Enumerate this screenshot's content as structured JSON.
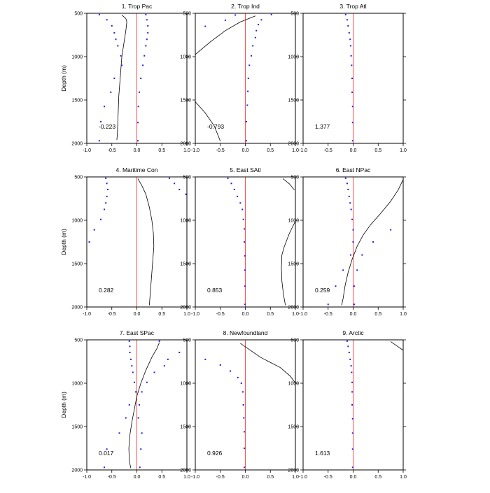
{
  "figure": {
    "y_axis_label": "Depth (m)"
  },
  "chart_data": [
    {
      "type": "line",
      "title": "1. Trop Pac",
      "value_label": "-0.223",
      "xlim": [
        -1,
        1
      ],
      "ylim": [
        500,
        2000
      ],
      "ylabel": "Depth (m)",
      "xticks": [
        "-1.0",
        "-0.5",
        "0.0",
        "0.5",
        "1.0"
      ],
      "yticks": [
        "500",
        "1000",
        "1500",
        "2000"
      ],
      "reference_x": 0,
      "line": [
        [
          -0.3,
          520
        ],
        [
          -0.22,
          560
        ],
        [
          -0.2,
          600
        ],
        [
          -0.22,
          700
        ],
        [
          -0.26,
          850
        ],
        [
          -0.3,
          1000
        ],
        [
          -0.32,
          1150
        ],
        [
          -0.34,
          1300
        ],
        [
          -0.36,
          1450
        ],
        [
          -0.37,
          1600
        ],
        [
          -0.38,
          1750
        ],
        [
          -0.39,
          1900
        ],
        [
          -0.4,
          1960
        ]
      ],
      "points": [
        [
          -0.75,
          515
        ],
        [
          -0.6,
          575
        ],
        [
          -0.5,
          645
        ],
        [
          -0.45,
          725
        ],
        [
          -0.42,
          800
        ],
        [
          -0.38,
          875
        ],
        [
          -0.32,
          990
        ],
        [
          -0.3,
          1100
        ],
        [
          -0.45,
          1250
        ],
        [
          -0.52,
          1410
        ],
        [
          -0.65,
          1575
        ],
        [
          -0.72,
          1750
        ],
        [
          -0.75,
          1970
        ],
        [
          0.18,
          515
        ],
        [
          0.2,
          575
        ],
        [
          0.22,
          645
        ],
        [
          0.22,
          725
        ],
        [
          0.2,
          800
        ],
        [
          0.18,
          875
        ],
        [
          0.15,
          990
        ],
        [
          0.12,
          1100
        ],
        [
          0.08,
          1250
        ],
        [
          0.05,
          1410
        ],
        [
          0.03,
          1575
        ],
        [
          0.02,
          1760
        ],
        [
          0.02,
          1970
        ]
      ]
    },
    {
      "type": "line",
      "title": "2. Trop Ind",
      "value_label": "-0.793",
      "xlim": [
        -1,
        1
      ],
      "ylim": [
        500,
        2000
      ],
      "ylabel": "",
      "xticks": [
        "-1.0",
        "-0.5",
        "0.0",
        "0.5",
        "1.0"
      ],
      "yticks": [
        "500",
        "1000",
        "1500",
        "2000"
      ],
      "reference_x": 0,
      "line": [
        [
          0.2,
          530
        ],
        [
          -0.1,
          600
        ],
        [
          -0.4,
          700
        ],
        [
          -0.7,
          830
        ],
        [
          -1.0,
          975
        ]
      ],
      "line2": [
        [
          -1.0,
          1520
        ],
        [
          -0.8,
          1650
        ],
        [
          -0.62,
          1800
        ],
        [
          -0.5,
          1975
        ]
      ],
      "points": [
        [
          -0.2,
          520
        ],
        [
          -0.4,
          580
        ],
        [
          -0.8,
          650
        ],
        [
          0.52,
          515
        ],
        [
          0.32,
          575
        ],
        [
          0.26,
          630
        ],
        [
          0.22,
          700
        ],
        [
          0.2,
          780
        ],
        [
          0.15,
          875
        ],
        [
          0.12,
          990
        ],
        [
          0.08,
          1100
        ],
        [
          0.06,
          1250
        ],
        [
          0.05,
          1400
        ],
        [
          0.04,
          1560
        ],
        [
          0.02,
          1750
        ],
        [
          0.02,
          1970
        ]
      ]
    },
    {
      "type": "line",
      "title": "3. Trop Atl",
      "value_label": "1.377",
      "xlim": [
        -1,
        1
      ],
      "ylim": [
        500,
        2000
      ],
      "ylabel": "",
      "xticks": [
        "-1.0",
        "-0.5",
        "0.0",
        "0.5",
        "1.0"
      ],
      "yticks": [
        "500",
        "1000",
        "1500",
        "2000"
      ],
      "reference_x": 0,
      "line": [],
      "points": [
        [
          -0.15,
          515
        ],
        [
          -0.12,
          575
        ],
        [
          -0.1,
          645
        ],
        [
          -0.08,
          725
        ],
        [
          -0.06,
          800
        ],
        [
          -0.05,
          875
        ],
        [
          -0.04,
          990
        ],
        [
          -0.03,
          1100
        ],
        [
          -0.02,
          1250
        ],
        [
          -0.02,
          1410
        ],
        [
          -0.01,
          1575
        ],
        [
          -0.01,
          1760
        ],
        [
          -0.01,
          1970
        ]
      ]
    },
    {
      "type": "line",
      "title": "4. Maritime Con",
      "value_label": "0.282",
      "xlim": [
        -1,
        1
      ],
      "ylim": [
        500,
        2000
      ],
      "ylabel": "Depth (m)",
      "xticks": [
        "-1.0",
        "-0.5",
        "0.0",
        "0.5",
        "1.0"
      ],
      "yticks": [
        "500",
        "1000",
        "1500",
        "2000"
      ],
      "reference_x": 0,
      "line": [
        [
          0.02,
          520
        ],
        [
          0.1,
          600
        ],
        [
          0.18,
          700
        ],
        [
          0.25,
          850
        ],
        [
          0.3,
          1000
        ],
        [
          0.33,
          1150
        ],
        [
          0.34,
          1300
        ],
        [
          0.32,
          1450
        ],
        [
          0.3,
          1600
        ],
        [
          0.28,
          1750
        ],
        [
          0.26,
          1900
        ],
        [
          0.25,
          1980
        ]
      ],
      "points": [
        [
          -0.62,
          515
        ],
        [
          -0.6,
          575
        ],
        [
          -0.58,
          645
        ],
        [
          -0.6,
          725
        ],
        [
          -0.62,
          800
        ],
        [
          -0.65,
          875
        ],
        [
          -0.72,
          990
        ],
        [
          -0.85,
          1110
        ],
        [
          -0.95,
          1250
        ],
        [
          0.65,
          515
        ],
        [
          0.75,
          575
        ],
        [
          0.85,
          645
        ],
        [
          0.98,
          700
        ]
      ]
    },
    {
      "type": "line",
      "title": "5. East SAtl",
      "value_label": "0.853",
      "xlim": [
        -1,
        1
      ],
      "ylim": [
        500,
        2000
      ],
      "ylabel": "",
      "xticks": [
        "-1.0",
        "-0.5",
        "0.0",
        "0.5",
        "1.0"
      ],
      "yticks": [
        "500",
        "1000",
        "1500",
        "2000"
      ],
      "reference_x": 0,
      "line": [
        [
          0.75,
          520
        ],
        [
          0.88,
          580
        ],
        [
          0.98,
          650
        ]
      ],
      "line2": [
        [
          1.0,
          1010
        ],
        [
          0.88,
          1150
        ],
        [
          0.78,
          1300
        ],
        [
          0.73,
          1400
        ],
        [
          0.72,
          1550
        ],
        [
          0.73,
          1700
        ],
        [
          0.76,
          1850
        ],
        [
          0.8,
          1980
        ]
      ],
      "points": [
        [
          -0.35,
          515
        ],
        [
          -0.28,
          575
        ],
        [
          -0.22,
          645
        ],
        [
          -0.16,
          725
        ],
        [
          -0.1,
          800
        ],
        [
          -0.06,
          875
        ],
        [
          -0.04,
          990
        ],
        [
          -0.02,
          1100
        ],
        [
          -0.02,
          1250
        ],
        [
          -0.01,
          1410
        ],
        [
          -0.01,
          1575
        ],
        [
          -0.01,
          1760
        ],
        [
          -0.01,
          1970
        ]
      ]
    },
    {
      "type": "line",
      "title": "6. East NPac",
      "value_label": "0.259",
      "xlim": [
        -1,
        1
      ],
      "ylim": [
        500,
        2000
      ],
      "ylabel": "",
      "xticks": [
        "-1.0",
        "-0.5",
        "0.0",
        "0.5",
        "1.0"
      ],
      "yticks": [
        "500",
        "1000",
        "1500",
        "2000"
      ],
      "reference_x": 0,
      "line": [
        [
          1.0,
          530
        ],
        [
          0.9,
          650
        ],
        [
          0.75,
          780
        ],
        [
          0.55,
          920
        ],
        [
          0.35,
          1050
        ],
        [
          0.2,
          1170
        ],
        [
          0.08,
          1300
        ],
        [
          -0.02,
          1450
        ],
        [
          -0.1,
          1600
        ],
        [
          -0.16,
          1750
        ],
        [
          -0.2,
          1900
        ],
        [
          -0.23,
          1980
        ]
      ],
      "points": [
        [
          -0.15,
          515
        ],
        [
          -0.12,
          575
        ],
        [
          -0.1,
          645
        ],
        [
          -0.08,
          725
        ],
        [
          -0.06,
          800
        ],
        [
          -0.04,
          875
        ],
        [
          -0.02,
          990
        ],
        [
          0.0,
          1110
        ],
        [
          0.0,
          1250
        ],
        [
          -0.05,
          1400
        ],
        [
          -0.2,
          1575
        ],
        [
          -0.35,
          1760
        ],
        [
          -0.5,
          1970
        ],
        [
          0.75,
          1110
        ],
        [
          0.4,
          1250
        ],
        [
          0.18,
          1400
        ],
        [
          0.08,
          1575
        ],
        [
          0.02,
          1760
        ],
        [
          0.02,
          1970
        ]
      ]
    },
    {
      "type": "line",
      "title": "7. East SPac",
      "value_label": "0.017",
      "xlim": [
        -1,
        1
      ],
      "ylim": [
        500,
        2000
      ],
      "ylabel": "Depth (m)",
      "xticks": [
        "-1.0",
        "-0.5",
        "0.0",
        "0.5",
        "1.0"
      ],
      "yticks": [
        "500",
        "1000",
        "1500",
        "2000"
      ],
      "reference_x": 0,
      "line": [
        [
          0.45,
          530
        ],
        [
          0.4,
          600
        ],
        [
          0.3,
          700
        ],
        [
          0.18,
          850
        ],
        [
          0.08,
          1000
        ],
        [
          0.0,
          1150
        ],
        [
          -0.05,
          1300
        ],
        [
          -0.1,
          1450
        ],
        [
          -0.14,
          1600
        ],
        [
          -0.16,
          1750
        ],
        [
          -0.15,
          1900
        ],
        [
          -0.12,
          1980
        ]
      ],
      "points": [
        [
          -0.15,
          515
        ],
        [
          -0.14,
          575
        ],
        [
          -0.14,
          645
        ],
        [
          -0.12,
          725
        ],
        [
          -0.1,
          800
        ],
        [
          -0.08,
          875
        ],
        [
          -0.05,
          990
        ],
        [
          -0.02,
          1100
        ],
        [
          -0.15,
          1250
        ],
        [
          -0.22,
          1400
        ],
        [
          -0.35,
          1575
        ],
        [
          -0.6,
          1760
        ],
        [
          -0.65,
          1970
        ],
        [
          0.45,
          515
        ],
        [
          0.85,
          645
        ],
        [
          0.62,
          725
        ],
        [
          0.55,
          800
        ],
        [
          0.35,
          875
        ],
        [
          0.2,
          990
        ],
        [
          0.1,
          1100
        ],
        [
          0.05,
          1250
        ],
        [
          0.03,
          1400
        ],
        [
          0.1,
          1575
        ],
        [
          0.08,
          1760
        ],
        [
          0.06,
          1970
        ]
      ]
    },
    {
      "type": "line",
      "title": "8. Newfoundland",
      "value_label": "0.926",
      "xlim": [
        -1,
        1
      ],
      "ylim": [
        500,
        2000
      ],
      "ylabel": "",
      "xticks": [
        "-1.0",
        "-0.5",
        "0.0",
        "0.5",
        "1.0"
      ],
      "yticks": [
        "500",
        "1000",
        "1500",
        "2000"
      ],
      "reference_x": 0,
      "line": [
        [
          -0.1,
          540
        ],
        [
          0.3,
          700
        ],
        [
          0.7,
          820
        ],
        [
          0.9,
          920
        ],
        [
          1.0,
          1000
        ]
      ],
      "points": [
        [
          -0.8,
          725
        ],
        [
          -0.5,
          790
        ],
        [
          -0.3,
          860
        ],
        [
          -0.15,
          935
        ],
        [
          -0.08,
          1000
        ],
        [
          -0.05,
          1100
        ],
        [
          -0.04,
          1250
        ],
        [
          -0.03,
          1400
        ],
        [
          -0.02,
          1560
        ],
        [
          -0.02,
          1750
        ],
        [
          -0.02,
          1970
        ]
      ]
    },
    {
      "type": "line",
      "title": "9. Arctic",
      "value_label": "1.613",
      "xlim": [
        -1,
        1
      ],
      "ylim": [
        500,
        2000
      ],
      "ylabel": "",
      "xticks": [
        "-1.0",
        "-0.5",
        "0.0",
        "0.5",
        "1.0"
      ],
      "yticks": [
        "500",
        "1000",
        "1500",
        "2000"
      ],
      "reference_x": 0,
      "line": [
        [
          0.75,
          520
        ],
        [
          0.9,
          580
        ],
        [
          1.0,
          620
        ]
      ],
      "points": [
        [
          -0.12,
          515
        ],
        [
          -0.1,
          575
        ],
        [
          -0.08,
          645
        ],
        [
          -0.06,
          725
        ],
        [
          -0.04,
          800
        ],
        [
          -0.03,
          875
        ],
        [
          -0.02,
          990
        ],
        [
          -0.02,
          1100
        ],
        [
          -0.02,
          1250
        ],
        [
          -0.01,
          1410
        ],
        [
          -0.01,
          1575
        ],
        [
          -0.01,
          1760
        ],
        [
          -0.01,
          1970
        ]
      ]
    }
  ]
}
